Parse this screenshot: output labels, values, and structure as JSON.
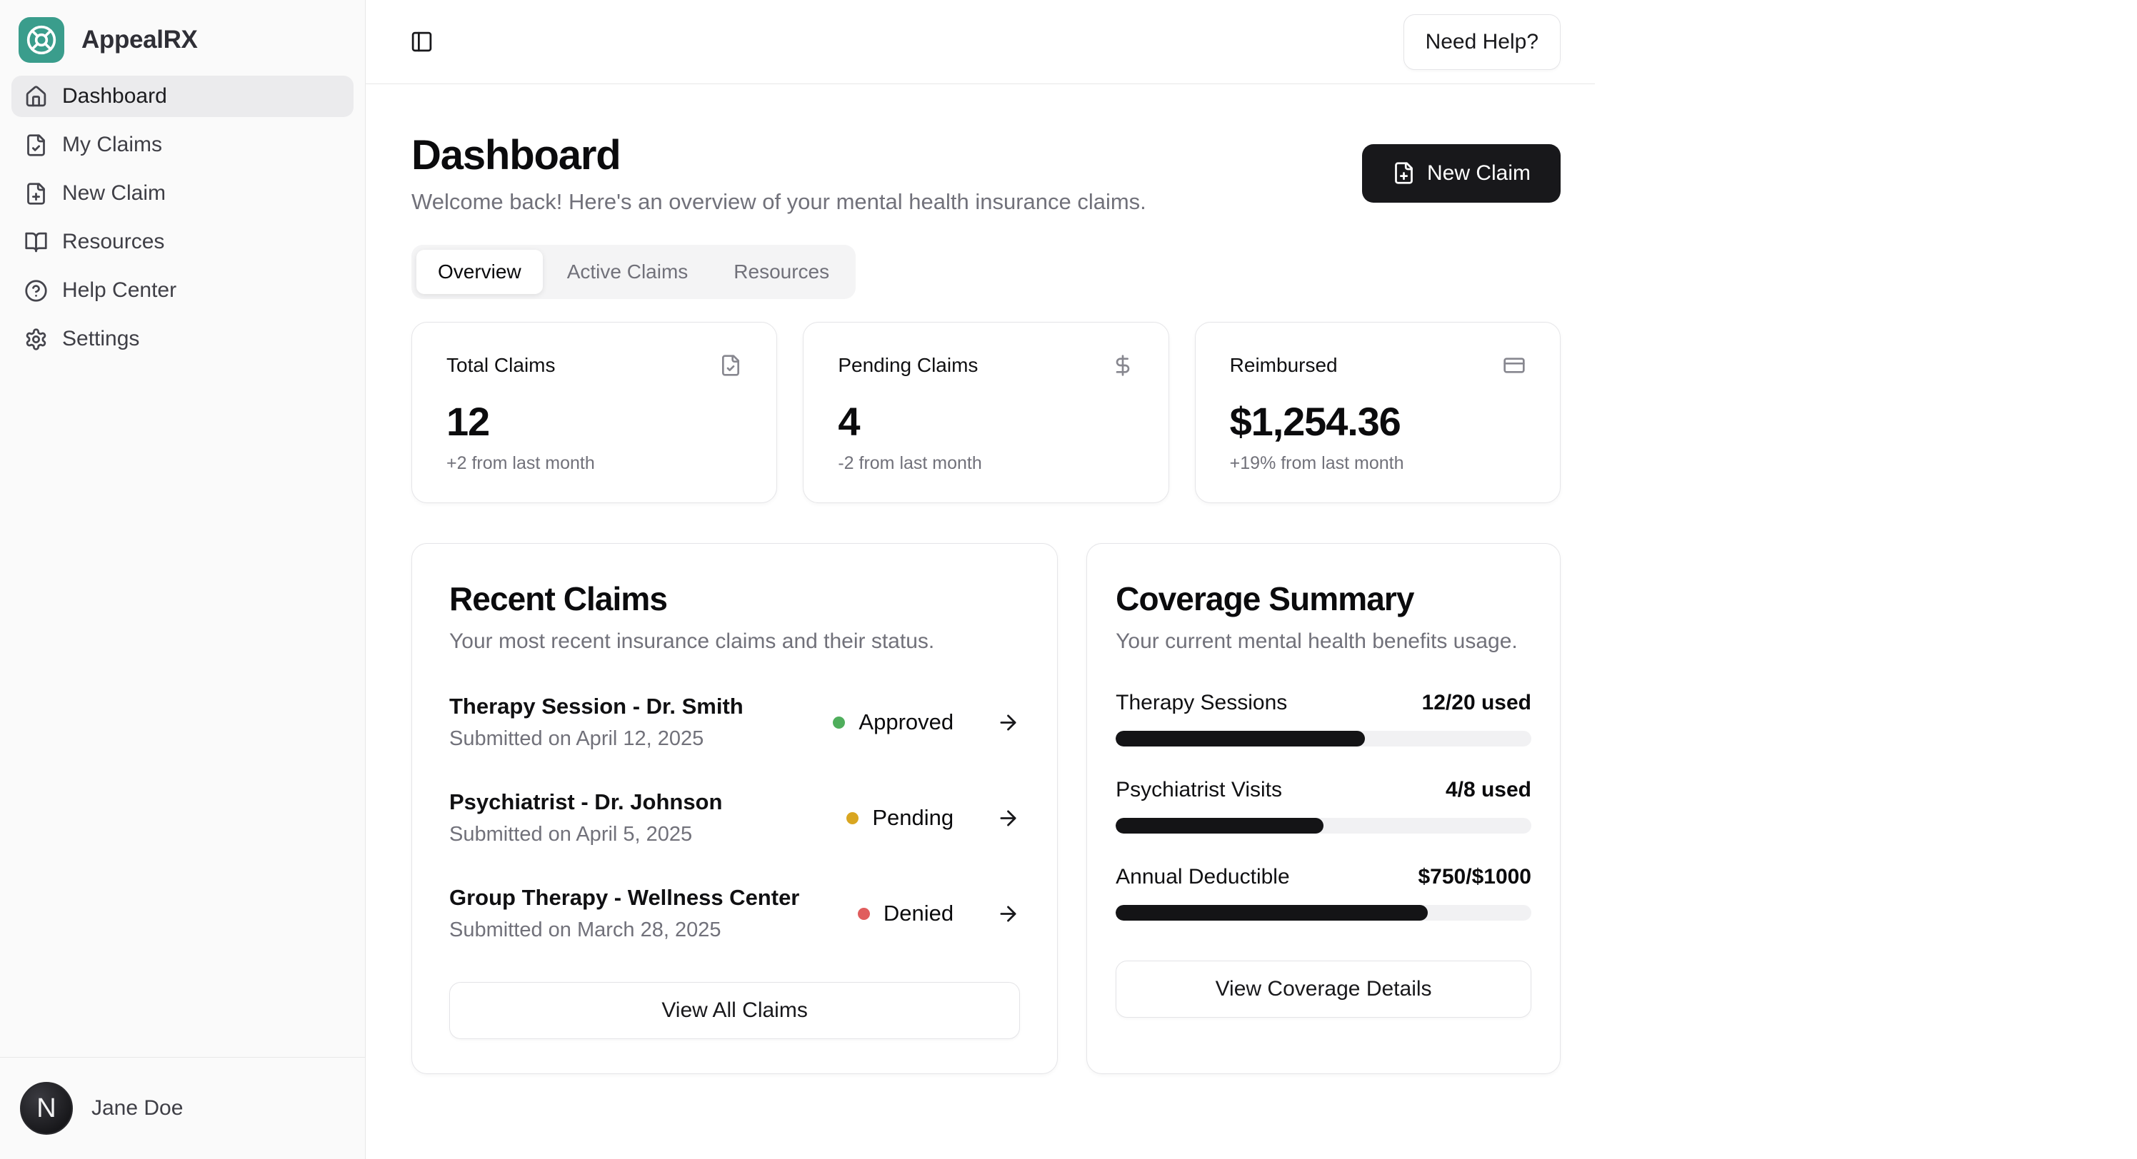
{
  "brand": {
    "name": "AppealRX",
    "logo_color": "#3a9d8c"
  },
  "sidebar": {
    "items": [
      {
        "label": "Dashboard",
        "icon": "home",
        "active": true
      },
      {
        "label": "My Claims",
        "icon": "file-check"
      },
      {
        "label": "New Claim",
        "icon": "file-plus"
      },
      {
        "label": "Resources",
        "icon": "book-open"
      },
      {
        "label": "Help Center",
        "icon": "help-circle"
      },
      {
        "label": "Settings",
        "icon": "settings"
      }
    ],
    "user": {
      "name": "Jane Doe",
      "avatar_letter": "N"
    }
  },
  "header": {
    "help_button": "Need Help?"
  },
  "page": {
    "title": "Dashboard",
    "subtitle": "Welcome back! Here's an overview of your mental health insurance claims.",
    "new_claim_button": "New Claim"
  },
  "tabs": [
    {
      "label": "Overview",
      "active": true
    },
    {
      "label": "Active Claims",
      "active": false
    },
    {
      "label": "Resources",
      "active": false
    }
  ],
  "stats": [
    {
      "title": "Total Claims",
      "icon": "file-check",
      "value": "12",
      "caption": "+2 from last month"
    },
    {
      "title": "Pending Claims",
      "icon": "dollar-sign",
      "value": "4",
      "caption": "-2 from last month"
    },
    {
      "title": "Reimbursed",
      "icon": "credit-card",
      "value": "$1,254.36",
      "caption": "+19% from last month"
    }
  ],
  "recent_claims": {
    "title": "Recent Claims",
    "subtitle": "Your most recent insurance claims and their status.",
    "items": [
      {
        "title": "Therapy Session - Dr. Smith",
        "date": "Submitted on April 12, 2025",
        "status": "Approved",
        "status_color": "#4fae5c"
      },
      {
        "title": "Psychiatrist - Dr. Johnson",
        "date": "Submitted on April 5, 2025",
        "status": "Pending",
        "status_color": "#d9a621"
      },
      {
        "title": "Group Therapy - Wellness Center",
        "date": "Submitted on March 28, 2025",
        "status": "Denied",
        "status_color": "#e05d5d"
      }
    ],
    "view_all_button": "View All Claims"
  },
  "coverage": {
    "title": "Coverage Summary",
    "subtitle": "Your current mental health benefits usage.",
    "benefits": [
      {
        "label": "Therapy Sessions",
        "usage": "12/20 used",
        "percent": 60
      },
      {
        "label": "Psychiatrist Visits",
        "usage": "4/8 used",
        "percent": 50
      },
      {
        "label": "Annual Deductible",
        "usage": "$750/$1000",
        "percent": 75
      }
    ],
    "details_button": "View Coverage Details"
  }
}
